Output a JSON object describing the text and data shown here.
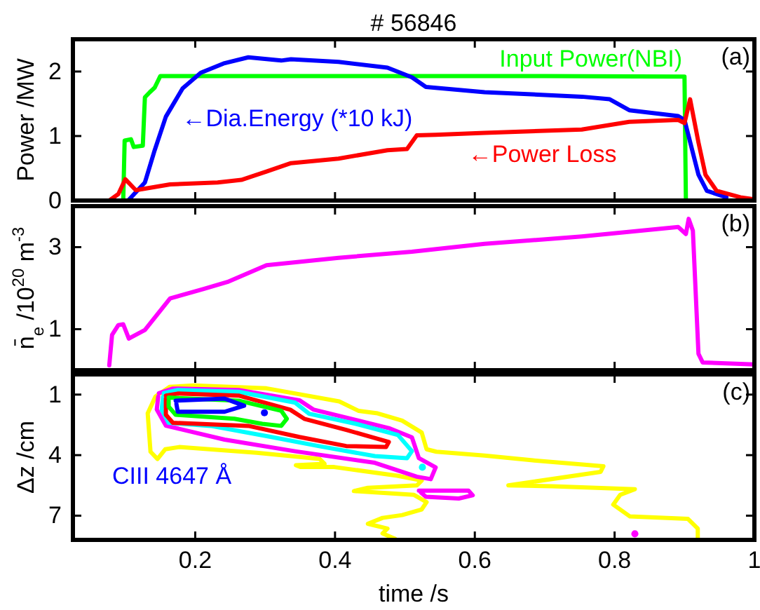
{
  "chart_data": [
    {
      "type": "line",
      "title": "# 56846",
      "ylabel": "Power /MW",
      "xlim": [
        0.025,
        1
      ],
      "xticks": [
        0.2,
        0.4,
        0.6,
        0.8,
        1
      ],
      "ylim": [
        0,
        2.5
      ],
      "yticks": [
        0,
        1,
        2
      ],
      "tick_labels": "y",
      "annotations": [
        "(a)"
      ],
      "series": [
        {
          "name": "Input Power(NBI)",
          "color": "#00ff00",
          "x": [
            0.09,
            0.097,
            0.099,
            0.108,
            0.112,
            0.125,
            0.128,
            0.135,
            0.142,
            0.15,
            0.3,
            0.5,
            0.7,
            0.9,
            0.902,
            1
          ],
          "values": [
            0,
            0,
            0.93,
            0.95,
            0.83,
            0.85,
            1.6,
            1.68,
            1.75,
            1.93,
            1.93,
            1.93,
            1.93,
            1.92,
            0,
            0
          ]
        },
        {
          "name": "←Dia.Energy (*10 kJ)",
          "color": "#0000ff",
          "x": [
            0.104,
            0.128,
            0.142,
            0.158,
            0.182,
            0.208,
            0.242,
            0.276,
            0.323,
            0.337,
            0.405,
            0.475,
            0.51,
            0.53,
            0.614,
            0.753,
            0.793,
            0.821,
            0.891,
            0.9,
            0.92,
            0.932,
            0.96
          ],
          "values": [
            0,
            0.28,
            0.78,
            1.3,
            1.74,
            1.98,
            2.13,
            2.22,
            2.17,
            2.19,
            2.15,
            2.06,
            1.91,
            1.76,
            1.68,
            1.61,
            1.57,
            1.4,
            1.31,
            1.25,
            0.4,
            0.15,
            0.05
          ]
        },
        {
          "name": "←Power Loss",
          "color": "#ff0000",
          "x": [
            0.077,
            0.09,
            0.1,
            0.115,
            0.164,
            0.232,
            0.266,
            0.302,
            0.337,
            0.405,
            0.475,
            0.503,
            0.517,
            0.544,
            0.614,
            0.753,
            0.821,
            0.891,
            0.9,
            0.908,
            0.92,
            0.93,
            0.946,
            0.98,
            1
          ],
          "values": [
            0,
            0.1,
            0.33,
            0.16,
            0.25,
            0.28,
            0.32,
            0.45,
            0.58,
            0.65,
            0.78,
            0.8,
            1.01,
            1.02,
            1.05,
            1.1,
            1.22,
            1.25,
            1.2,
            1.57,
            0.9,
            0.4,
            0.15,
            0.05,
            0.02
          ]
        }
      ]
    },
    {
      "type": "line",
      "ylabel": "n̄$_{e}$ /10$^{20}$ m$^{-3}$",
      "xlim": [
        0.025,
        1
      ],
      "xticks": [
        0.2,
        0.4,
        0.6,
        0.8,
        1
      ],
      "ylim": [
        0,
        4
      ],
      "yticks": [
        1,
        3
      ],
      "tick_labels": "y",
      "annotations": [
        "(b)"
      ],
      "series": [
        {
          "color": "#ff00ff",
          "x": [
            0.077,
            0.081,
            0.09,
            0.097,
            0.105,
            0.128,
            0.164,
            0.212,
            0.246,
            0.302,
            0.405,
            0.51,
            0.614,
            0.753,
            0.891,
            0.902,
            0.906,
            0.912,
            0.92,
            0.926,
            1
          ],
          "values": [
            0.12,
            0.86,
            1.1,
            1.12,
            0.77,
            0.98,
            1.75,
            1.98,
            2.15,
            2.56,
            2.74,
            2.89,
            3.08,
            3.26,
            3.49,
            3.32,
            3.69,
            3.4,
            0.4,
            0.19,
            0.14
          ]
        }
      ]
    },
    {
      "type": "line",
      "xlabel": "time /s",
      "ylabel": "Δz /cm",
      "xlim": [
        0.025,
        1
      ],
      "xticks": [
        0.2,
        0.4,
        0.6,
        0.8,
        1
      ],
      "ylim": [
        8.2,
        0
      ],
      "yticks": [
        1,
        4,
        7
      ],
      "annotations": [
        "(c)",
        "CIII 4647 Å"
      ],
      "series": [
        {
          "color": "#ffff00",
          "x": [
            0.486,
            0.468,
            0.475,
            0.447,
            0.468,
            0.496,
            0.524,
            0.531,
            0.513,
            0.427,
            0.447,
            0.517,
            0.524,
            0.489,
            0.399,
            0.351,
            0.344,
            0.385,
            0.378,
            0.288,
            0.177,
            0.157,
            0.146,
            0.136,
            0.132,
            0.143,
            0.163,
            0.198,
            0.302,
            0.406,
            0.434,
            0.461,
            0.496,
            0.524,
            0.531,
            0.545,
            0.614,
            0.683,
            0.784,
            0.78,
            0.648,
            0.711,
            0.829,
            0.808,
            0.798,
            0.822,
            0.905,
            0.919,
            0.919
          ],
          "values": [
            8.15,
            7.88,
            7.64,
            7.4,
            7.11,
            6.97,
            6.69,
            6.33,
            5.97,
            5.78,
            5.62,
            5.5,
            5.26,
            5.02,
            4.59,
            4.59,
            4.5,
            4.43,
            4.19,
            3.88,
            3.6,
            3.71,
            4.19,
            3.83,
            1.93,
            1.1,
            0.62,
            0.55,
            0.69,
            1.34,
            1.81,
            1.93,
            2.29,
            2.88,
            3.71,
            3.83,
            4.02,
            4.26,
            4.55,
            4.83,
            5.5,
            5.54,
            5.69,
            5.97,
            6.45,
            7.04,
            7.16,
            7.64,
            8.15
          ]
        },
        {
          "color": "#ff00ff",
          "x": [
            0.148,
            0.168,
            0.262,
            0.349,
            0.369,
            0.477,
            0.51,
            0.52,
            0.544,
            0.537,
            0.517,
            0.457,
            0.343,
            0.242,
            0.158,
            0.145,
            0.147
          ],
          "values": [
            0.93,
            0.7,
            0.77,
            1.28,
            1.74,
            2.66,
            3.12,
            4.15,
            4.61,
            5.19,
            5.07,
            4.38,
            3.81,
            3.23,
            2.54,
            1.74,
            1.1
          ]
        },
        {
          "color": "#ff00ff",
          "x": [
            0.52,
            0.591,
            0.597,
            0.577,
            0.53,
            0.523
          ],
          "values": [
            5.76,
            5.76,
            5.99,
            6.15,
            6.06,
            5.85
          ]
        },
        {
          "type": "scatter",
          "marker": "circle",
          "color": "#ff00ff",
          "x": [
            0.829
          ],
          "values": [
            7.9
          ]
        },
        {
          "color": "#00ffff",
          "x": [
            0.155,
            0.175,
            0.262,
            0.343,
            0.363,
            0.43,
            0.49,
            0.51,
            0.503,
            0.457,
            0.376,
            0.309,
            0.222,
            0.162,
            0.152,
            0.154
          ],
          "values": [
            0.93,
            0.77,
            0.86,
            1.4,
            1.95,
            2.45,
            3.0,
            3.8,
            4.15,
            4.05,
            3.55,
            3.1,
            2.55,
            2.4,
            1.75,
            1.1
          ]
        },
        {
          "type": "scatter",
          "marker": "circle",
          "color": "#00ffff",
          "x": [
            0.525
          ],
          "values": [
            4.6
          ]
        },
        {
          "color": "#ff0000",
          "x": [
            0.158,
            0.175,
            0.262,
            0.336,
            0.356,
            0.416,
            0.477,
            0.473,
            0.416,
            0.349,
            0.276,
            0.168,
            0.158,
            0.158
          ],
          "values": [
            1.05,
            0.95,
            1.05,
            1.75,
            2.2,
            2.75,
            3.35,
            3.6,
            3.55,
            3.1,
            2.55,
            2.4,
            2.0,
            1.2
          ]
        },
        {
          "color": "#00ff00",
          "x": [
            0.162,
            0.262,
            0.323,
            0.331,
            0.323,
            0.296,
            0.256,
            0.172,
            0.162,
            0.162
          ],
          "values": [
            1.15,
            1.3,
            1.8,
            2.2,
            2.55,
            2.45,
            2.2,
            2.0,
            1.6,
            1.3
          ]
        },
        {
          "color": "#0000ff",
          "x": [
            0.172,
            0.242,
            0.27,
            0.242,
            0.175,
            0.173
          ],
          "values": [
            1.3,
            1.2,
            1.55,
            1.85,
            1.85,
            1.45
          ]
        },
        {
          "type": "scatter",
          "marker": "circle",
          "color": "#0000ff",
          "x": [
            0.299
          ],
          "values": [
            1.9
          ]
        }
      ]
    }
  ]
}
